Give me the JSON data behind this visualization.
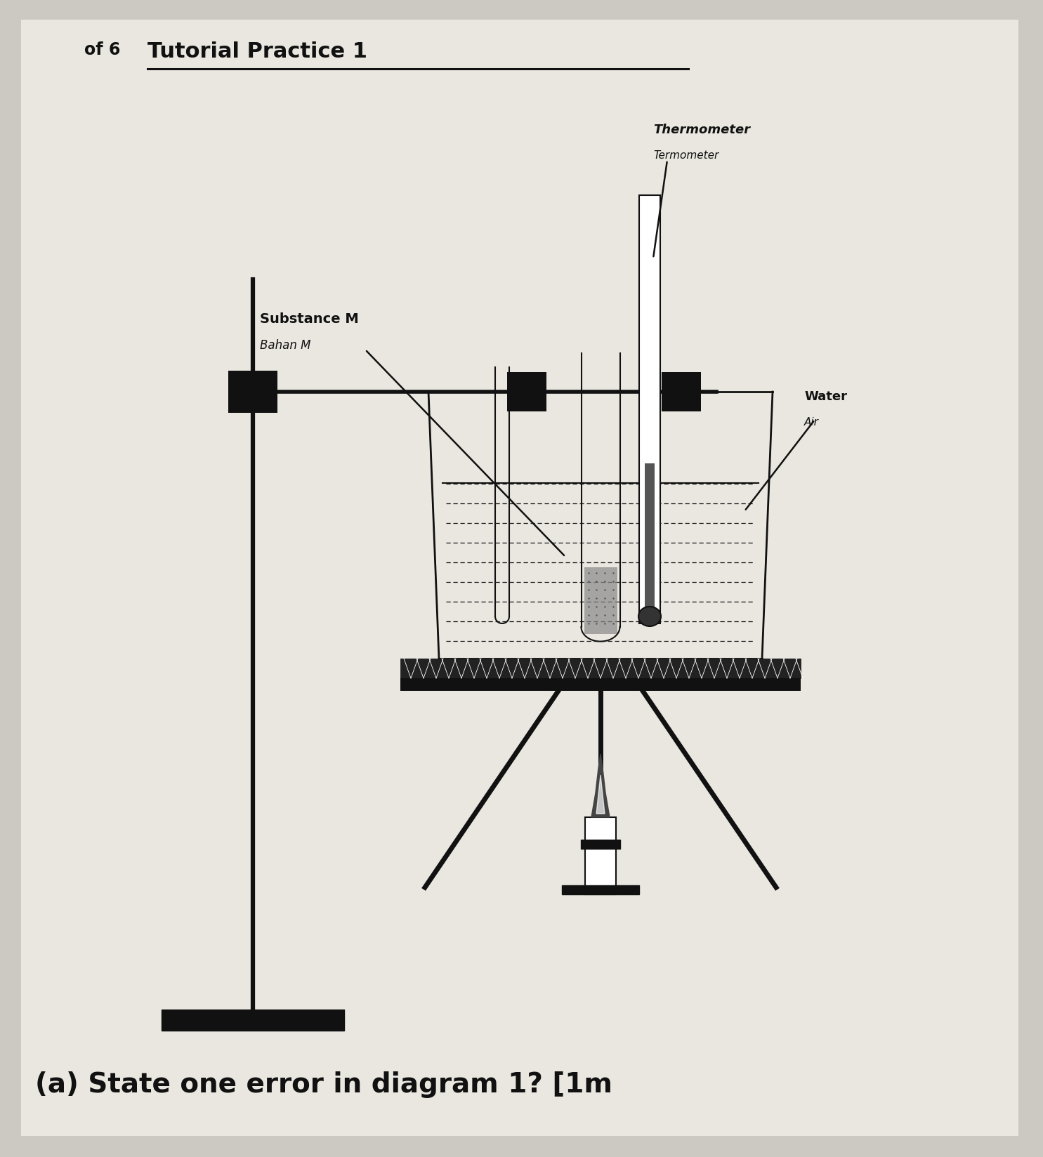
{
  "title": "Tutorial Practice 1",
  "subtitle_prefix": "of 6",
  "bg_color": "#ccc9c2",
  "paper_color": "#e8e5de",
  "label_thermometer_en": "Thermometer",
  "label_thermometer_ms": "Termometer",
  "label_substance_en": "Substance M",
  "label_substance_ms": "Bahan M",
  "label_water_en": "Water",
  "label_water_ms": "Air",
  "question": "(a) State one error in diagram 1? [1m",
  "line_color": "#111111"
}
